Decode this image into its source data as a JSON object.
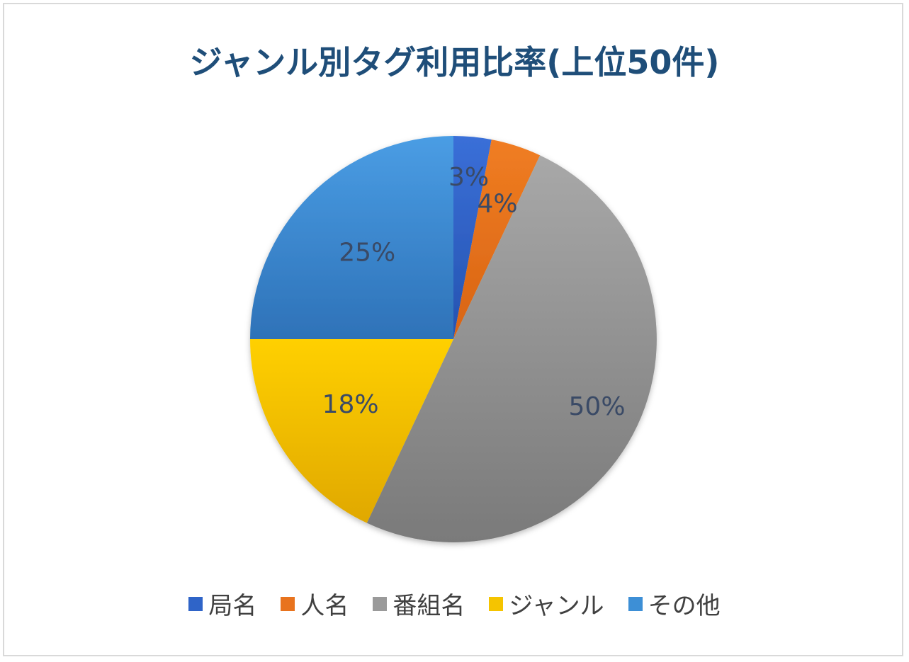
{
  "title": "ジャンル別タグ利用比率(上位50件)",
  "chart_data": {
    "type": "pie",
    "title": "ジャンル別タグ利用比率(上位50件)",
    "categories": [
      "局名",
      "人名",
      "番組名",
      "ジャンル",
      "その他"
    ],
    "values": [
      3,
      4,
      50,
      18,
      25
    ],
    "labels": [
      "3%",
      "4%",
      "50%",
      "18%",
      "25%"
    ],
    "colors": [
      "#2f64c8",
      "#e8731e",
      "#9a9a9a",
      "#f5c400",
      "#3d8fd6"
    ],
    "legend_position": "bottom",
    "start_angle": "12 o'clock",
    "direction": "clockwise"
  },
  "legend": [
    {
      "label": "局名",
      "color": "#2f64c8"
    },
    {
      "label": "人名",
      "color": "#e8731e"
    },
    {
      "label": "番組名",
      "color": "#9a9a9a"
    },
    {
      "label": "ジャンル",
      "color": "#f5c400"
    },
    {
      "label": "その他",
      "color": "#3d8fd6"
    }
  ]
}
